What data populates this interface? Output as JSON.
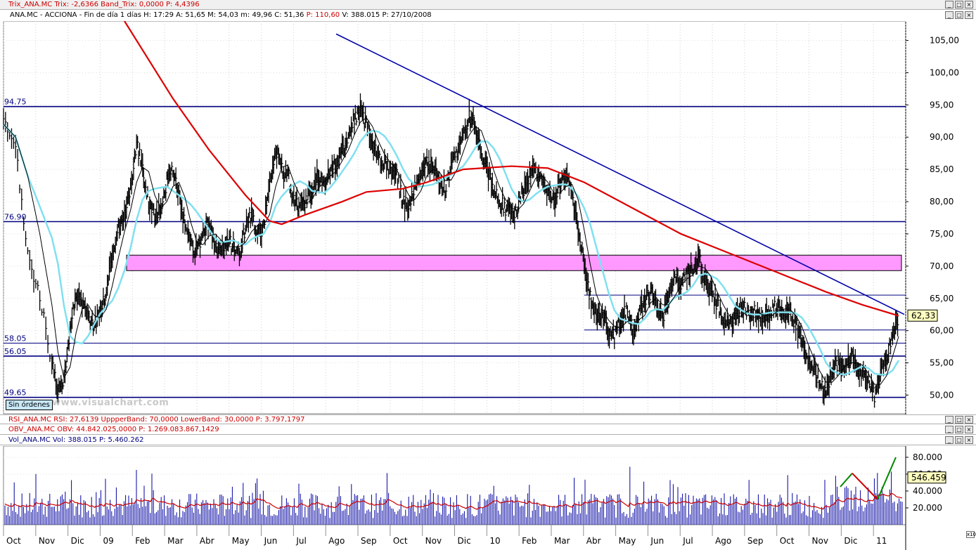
{
  "panels": {
    "trix": "Trix_ANA.MC  Trix: -2,6366  Band_Trix: 0,0000  P: 4,4396",
    "price_info": {
      "prefix": "ANA.MC - ACCIONA - Fin de día 1 días  H: 17:29  A: 51,65  M: 54,03  m: 49,96  C: 51,36  ",
      "p": "P: 110,60",
      "suffix": "  V: 388.015  P: 27/10/2008"
    },
    "rsi": "RSI_ANA.MC  RSI: 27,6139  UppperBand: 70,0000  LowerBand: 30,0000  P: 3.797,1797",
    "obv": "OBV_ANA.MC  OBV: 44.842.025,0000  P: 1.269.083.867,1429",
    "vol": "Vol_ANA.MC  Vol: 388.015  P: 5.460.262"
  },
  "buttons": {
    "minimize": "_",
    "maximize": "□",
    "close": "×",
    "sin_ordenes": "Sin órdenes",
    "x10": "x10"
  },
  "watermark": "www.visualchart.com",
  "colors": {
    "price_bars": "#000000",
    "sma_short": "#000000",
    "sma_mid": "#80e0f0",
    "sma_long": "#dd0000",
    "levels": "#000080",
    "trendline": "#0000aa",
    "resistance_zone": "#ff99ff",
    "volume": "#0000a0",
    "volume_avg": "#cc0000",
    "volume_green": "#008800"
  },
  "chart_data": [
    {
      "type": "candlestick",
      "x_labels": [
        "Oct",
        "Nov",
        "Dic",
        "09",
        "Feb",
        "Mar",
        "Abr",
        "May",
        "Jun",
        "Jul",
        "Ago",
        "Sep",
        "Oct",
        "Nov",
        "Dic",
        "10",
        "Feb",
        "Mar",
        "Abr",
        "May",
        "Jun",
        "Jul",
        "Ago",
        "Sep",
        "Oct",
        "Nov",
        "Dic",
        "11"
      ],
      "y_ticks": [
        "105,00",
        "100,00",
        "95,00",
        "90,00",
        "85,00",
        "80,00",
        "75,00",
        "70,00",
        "65,00",
        "60,00",
        "55,00",
        "50,00"
      ],
      "ylim": [
        47,
        108
      ],
      "last_price": "62,33",
      "horizontal_levels": [
        {
          "value": 94.75,
          "label": "94.75"
        },
        {
          "value": 76.9,
          "label": "76.90"
        },
        {
          "value": 58.05,
          "label": "58.05"
        },
        {
          "value": 56.05,
          "label": "56.05"
        },
        {
          "value": 49.65,
          "label": "49.65"
        }
      ],
      "minor_levels": [
        65.5,
        60.1
      ],
      "resistance_zone": [
        69.3,
        71.7
      ],
      "price_series": [
        [
          0,
          92
        ],
        [
          2,
          88
        ],
        [
          4,
          72
        ],
        [
          6,
          65
        ],
        [
          8,
          55
        ],
        [
          9,
          50
        ],
        [
          10,
          53
        ],
        [
          11,
          60
        ],
        [
          12,
          66
        ],
        [
          13,
          64
        ],
        [
          14,
          62
        ],
        [
          15,
          61
        ],
        [
          16,
          63
        ],
        [
          17,
          66
        ],
        [
          18,
          72
        ],
        [
          19,
          76
        ],
        [
          20,
          78
        ],
        [
          21,
          82
        ],
        [
          22,
          89
        ],
        [
          23,
          85
        ],
        [
          24,
          80
        ],
        [
          25,
          78
        ],
        [
          26,
          79
        ],
        [
          27,
          83
        ],
        [
          28,
          85
        ],
        [
          29,
          81
        ],
        [
          30,
          76
        ],
        [
          31,
          73
        ],
        [
          32,
          72
        ],
        [
          33,
          75
        ],
        [
          34,
          77
        ],
        [
          35,
          73
        ],
        [
          36,
          72
        ],
        [
          37,
          74
        ],
        [
          38,
          73
        ],
        [
          39,
          72
        ],
        [
          40,
          76
        ],
        [
          41,
          78
        ],
        [
          42,
          75
        ],
        [
          43,
          76
        ],
        [
          44,
          83
        ],
        [
          45,
          88
        ],
        [
          46,
          85
        ],
        [
          47,
          84
        ],
        [
          48,
          80
        ],
        [
          49,
          79
        ],
        [
          50,
          80
        ],
        [
          51,
          82
        ],
        [
          52,
          84
        ],
        [
          53,
          83
        ],
        [
          54,
          85
        ],
        [
          55,
          86
        ],
        [
          56,
          88
        ],
        [
          57,
          90
        ],
        [
          58,
          93
        ],
        [
          59,
          94
        ],
        [
          60,
          92
        ],
        [
          61,
          89
        ],
        [
          62,
          87
        ],
        [
          63,
          86
        ],
        [
          64,
          85
        ],
        [
          65,
          84
        ],
        [
          66,
          80
        ],
        [
          67,
          79
        ],
        [
          68,
          82
        ],
        [
          69,
          84
        ],
        [
          70,
          86
        ],
        [
          71,
          85
        ],
        [
          72,
          83
        ],
        [
          73,
          82
        ],
        [
          74,
          85
        ],
        [
          75,
          88
        ],
        [
          76,
          90
        ],
        [
          77,
          93
        ],
        [
          78,
          92
        ],
        [
          79,
          88
        ],
        [
          80,
          85
        ],
        [
          81,
          82
        ],
        [
          82,
          80
        ],
        [
          83,
          79
        ],
        [
          84,
          78
        ],
        [
          85,
          79
        ],
        [
          86,
          82
        ],
        [
          87,
          84
        ],
        [
          88,
          85
        ],
        [
          89,
          83
        ],
        [
          90,
          81
        ],
        [
          91,
          80
        ],
        [
          92,
          83
        ],
        [
          93,
          84
        ],
        [
          94,
          81
        ],
        [
          95,
          76
        ],
        [
          96,
          70
        ],
        [
          97,
          65
        ],
        [
          98,
          62
        ],
        [
          99,
          63
        ],
        [
          100,
          60
        ],
        [
          101,
          59
        ],
        [
          102,
          62
        ],
        [
          103,
          63
        ],
        [
          104,
          60
        ],
        [
          105,
          62
        ],
        [
          106,
          65
        ],
        [
          107,
          66
        ],
        [
          108,
          64
        ],
        [
          109,
          62
        ],
        [
          110,
          66
        ],
        [
          111,
          68
        ],
        [
          112,
          67
        ],
        [
          113,
          69
        ],
        [
          114,
          70
        ],
        [
          115,
          71
        ],
        [
          116,
          68
        ],
        [
          117,
          66
        ],
        [
          118,
          64
        ],
        [
          119,
          62
        ],
        [
          120,
          61
        ],
        [
          121,
          62
        ],
        [
          122,
          64
        ],
        [
          123,
          63
        ],
        [
          124,
          63
        ],
        [
          125,
          62
        ],
        [
          126,
          62
        ],
        [
          127,
          63
        ],
        [
          128,
          64
        ],
        [
          129,
          63
        ],
        [
          130,
          63
        ],
        [
          131,
          61
        ],
        [
          132,
          58
        ],
        [
          133,
          55
        ],
        [
          134,
          54
        ],
        [
          135,
          52
        ],
        [
          136,
          50
        ],
        [
          137,
          54
        ],
        [
          138,
          55
        ],
        [
          139,
          54
        ],
        [
          140,
          56
        ],
        [
          141,
          55
        ],
        [
          142,
          53
        ],
        [
          143,
          52
        ],
        [
          144,
          50
        ],
        [
          145,
          53
        ],
        [
          146,
          56
        ],
        [
          147,
          59
        ],
        [
          148,
          62.3
        ]
      ],
      "sma_long_series": [
        [
          20,
          108
        ],
        [
          28,
          96
        ],
        [
          34,
          88
        ],
        [
          40,
          81
        ],
        [
          44,
          77
        ],
        [
          46,
          76.5
        ],
        [
          50,
          78
        ],
        [
          56,
          80
        ],
        [
          60,
          81.5
        ],
        [
          66,
          82
        ],
        [
          70,
          83
        ],
        [
          76,
          85
        ],
        [
          84,
          85.5
        ],
        [
          90,
          85.2
        ],
        [
          96,
          83
        ],
        [
          104,
          79
        ],
        [
          112,
          75
        ],
        [
          120,
          72
        ],
        [
          128,
          69
        ],
        [
          136,
          66
        ],
        [
          142,
          64
        ],
        [
          148,
          62.3
        ]
      ],
      "trendline": [
        [
          55,
          106
        ],
        [
          148,
          62.3
        ]
      ]
    },
    {
      "type": "bar",
      "name": "Vol",
      "y_ticks": [
        "80.000",
        "60.000",
        "40.000",
        "20.000"
      ],
      "ylim": [
        0,
        90000
      ],
      "last_value": "546.459"
    }
  ]
}
